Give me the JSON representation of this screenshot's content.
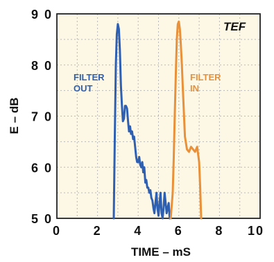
{
  "chart_data": {
    "type": "line",
    "xlabel": "TIME – mS",
    "ylabel": "E – dB",
    "xlim": [
      0,
      10
    ],
    "ylim": [
      50,
      90
    ],
    "x_ticks": [
      "0",
      "2",
      "4",
      "6",
      "8",
      "10"
    ],
    "y_ticks": [
      "5 0",
      "6 0",
      "7 0",
      "8 0",
      "9 0"
    ],
    "grid": true,
    "annotation": "TEF",
    "colors": {
      "filter_out": "#2f5fb0",
      "filter_in": "#e8913a",
      "plot_bg": "#fdf8e6",
      "grid": "#b8b8b8"
    },
    "series": [
      {
        "name_lines": [
          "FILTER",
          "OUT"
        ],
        "x": [
          2.8,
          2.85,
          2.9,
          2.95,
          3.0,
          3.05,
          3.1,
          3.15,
          3.2,
          3.25,
          3.3,
          3.35,
          3.4,
          3.45,
          3.5,
          3.55,
          3.6,
          3.65,
          3.7,
          3.75,
          3.8,
          3.85,
          3.9,
          3.95,
          4.0,
          4.05,
          4.1,
          4.15,
          4.2,
          4.25,
          4.3,
          4.35,
          4.4,
          4.45,
          4.5,
          4.55,
          4.6,
          4.65,
          4.7,
          4.75,
          4.8,
          4.85,
          4.9,
          4.95,
          5.0,
          5.05,
          5.1,
          5.15,
          5.2,
          5.25,
          5.3,
          5.35,
          5.4,
          5.45,
          5.5,
          5.55
        ],
        "values": [
          50,
          66,
          80,
          86,
          88,
          87,
          83,
          76,
          72,
          69,
          69.5,
          72,
          72,
          71.5,
          69,
          67,
          68,
          66.5,
          67,
          65.5,
          66,
          64,
          62,
          61,
          61,
          62,
          60.5,
          60,
          61,
          59,
          60,
          57,
          57.5,
          56,
          56,
          55,
          55.5,
          54,
          53.5,
          52,
          51,
          53,
          55,
          52,
          50.5,
          53,
          55,
          51,
          50,
          52,
          55,
          53,
          51,
          52,
          53,
          50
        ]
      },
      {
        "name_lines": [
          "FILTER",
          "IN"
        ],
        "x": [
          5.6,
          5.7,
          5.75,
          5.8,
          5.85,
          5.9,
          5.95,
          6.0,
          6.05,
          6.1,
          6.15,
          6.2,
          6.3,
          6.4,
          6.5,
          6.6,
          6.7,
          6.8,
          6.9,
          7.0,
          7.05,
          7.1
        ],
        "values": [
          50,
          55,
          62,
          70,
          78,
          85,
          88,
          88.5,
          87,
          84,
          80,
          75,
          66,
          63.5,
          63,
          64,
          63.5,
          63,
          64,
          61,
          56,
          50
        ]
      }
    ]
  }
}
